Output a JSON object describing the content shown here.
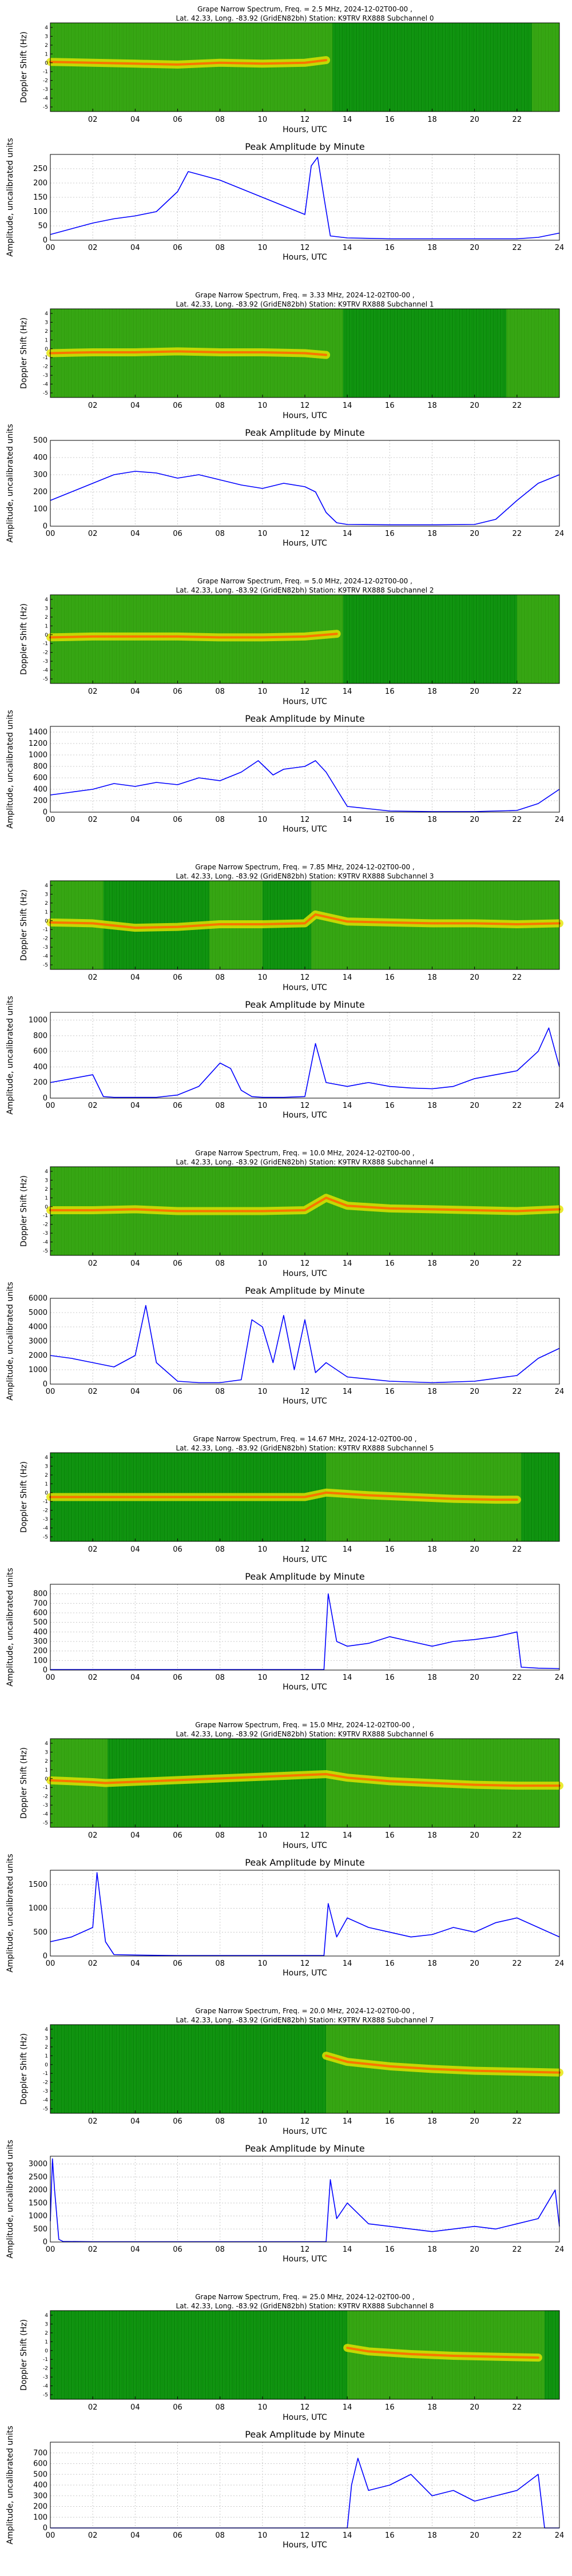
{
  "common": {
    "spec_title_tmpl": "Grape Narrow Spectrum, Freq. = {freq} MHz, 2024-12-02T00-00 ,",
    "spec_title_line2_tmpl": "Lat.  42.33, Long. -83.92 (GridEN82bh) Station: K9TRV RX888 Subchannel {ch}",
    "spec_ylabel": "Doppler Shift (Hz)",
    "spec_xticks": [
      "02",
      "04",
      "06",
      "08",
      "10",
      "12",
      "14",
      "16",
      "18",
      "20",
      "22"
    ],
    "spec_yticks": [
      "4",
      "3",
      "2",
      "1",
      "0",
      "-1",
      "-2",
      "-3",
      "-4",
      "-5"
    ],
    "peak_title": "Peak Amplitude by Minute",
    "peak_ylabel": "Amplitude, uncalibrated units",
    "xlabel": "Hours, UTC",
    "peak_xticks": [
      "00",
      "02",
      "04",
      "06",
      "08",
      "10",
      "12",
      "14",
      "16",
      "18",
      "20",
      "22",
      "24"
    ]
  },
  "chart_data": [
    {
      "type": "heatmap",
      "freq": "2.5",
      "channel": "0",
      "title": "Grape Narrow Spectrum, Freq. = 2.5 MHz, 2024-12-02T00-00 ,",
      "xlabel": "Hours, UTC",
      "ylabel": "Doppler Shift (Hz)",
      "xlim": [
        0,
        24
      ],
      "ylim": [
        -5,
        5
      ],
      "trace": [
        [
          0,
          0.6
        ],
        [
          2,
          0.5
        ],
        [
          4,
          0.4
        ],
        [
          6,
          0.3
        ],
        [
          8,
          0.5
        ],
        [
          10,
          0.4
        ],
        [
          12,
          0.5
        ],
        [
          13,
          0.8
        ]
      ],
      "active": [
        [
          0,
          13.3
        ],
        [
          22.7,
          24
        ]
      ]
    },
    {
      "type": "line",
      "title": "Peak Amplitude by Minute",
      "xlabel": "Hours, UTC",
      "ylabel": "Amplitude, uncalibrated units",
      "xlim": [
        0,
        24
      ],
      "ylim": [
        0,
        300
      ],
      "yticks": [
        0,
        50,
        100,
        150,
        200,
        250
      ],
      "x": [
        0,
        1,
        2,
        3,
        4,
        5,
        6,
        6.5,
        7,
        8,
        9,
        10,
        11,
        12,
        12.3,
        12.6,
        12.9,
        13.2,
        14,
        16,
        18,
        20,
        22,
        23,
        24
      ],
      "y": [
        20,
        40,
        60,
        75,
        85,
        100,
        170,
        240,
        230,
        210,
        180,
        150,
        120,
        90,
        260,
        290,
        150,
        15,
        8,
        5,
        5,
        5,
        5,
        10,
        25
      ]
    },
    {
      "type": "heatmap",
      "freq": "3.33",
      "channel": "1",
      "title": "Grape Narrow Spectrum, Freq. = 3.33 MHz, 2024-12-02T00-00 ,",
      "xlabel": "Hours, UTC",
      "ylabel": "Doppler Shift (Hz)",
      "xlim": [
        0,
        24
      ],
      "ylim": [
        -5,
        5
      ],
      "trace": [
        [
          0,
          0
        ],
        [
          2,
          0.1
        ],
        [
          4,
          0.1
        ],
        [
          6,
          0.2
        ],
        [
          8,
          0.1
        ],
        [
          10,
          0.1
        ],
        [
          12,
          0
        ],
        [
          13,
          -0.2
        ]
      ],
      "active": [
        [
          0,
          13.8
        ],
        [
          21.5,
          24
        ]
      ]
    },
    {
      "type": "line",
      "title": "Peak Amplitude by Minute",
      "xlabel": "Hours, UTC",
      "ylabel": "Amplitude, uncalibrated units",
      "xlim": [
        0,
        24
      ],
      "ylim": [
        0,
        500
      ],
      "yticks": [
        0,
        100,
        200,
        300,
        400,
        500
      ],
      "x": [
        0,
        1,
        2,
        3,
        4,
        5,
        6,
        7,
        8,
        9,
        10,
        11,
        12,
        12.5,
        13,
        13.5,
        14,
        16,
        18,
        20,
        21,
        22,
        23,
        24
      ],
      "y": [
        150,
        200,
        250,
        300,
        320,
        310,
        280,
        300,
        270,
        240,
        220,
        250,
        230,
        200,
        80,
        20,
        10,
        8,
        8,
        10,
        40,
        150,
        250,
        300
      ]
    },
    {
      "type": "heatmap",
      "freq": "5.0",
      "channel": "2",
      "title": "Grape Narrow Spectrum, Freq. = 5.0 MHz, 2024-12-02T00-00 ,",
      "xlabel": "Hours, UTC",
      "ylabel": "Doppler Shift (Hz)",
      "xlim": [
        0,
        24
      ],
      "ylim": [
        -5,
        5
      ],
      "trace": [
        [
          0,
          0.2
        ],
        [
          2,
          0.3
        ],
        [
          4,
          0.3
        ],
        [
          6,
          0.3
        ],
        [
          8,
          0.2
        ],
        [
          10,
          0.2
        ],
        [
          12,
          0.3
        ],
        [
          13.5,
          0.6
        ]
      ],
      "active": [
        [
          0,
          13.8
        ],
        [
          22,
          24
        ]
      ]
    },
    {
      "type": "line",
      "title": "Peak Amplitude by Minute",
      "xlabel": "Hours, UTC",
      "ylabel": "Amplitude, uncalibrated units",
      "xlim": [
        0,
        24
      ],
      "ylim": [
        0,
        1500
      ],
      "yticks": [
        0,
        200,
        400,
        600,
        800,
        1000,
        1200,
        1400
      ],
      "x": [
        0,
        1,
        2,
        3,
        4,
        5,
        6,
        7,
        8,
        9,
        9.8,
        10.5,
        11,
        12,
        12.5,
        13,
        13.5,
        14,
        16,
        18,
        20,
        22,
        23,
        24
      ],
      "y": [
        300,
        350,
        400,
        500,
        450,
        520,
        480,
        600,
        550,
        700,
        900,
        650,
        750,
        800,
        900,
        700,
        400,
        100,
        20,
        10,
        10,
        30,
        150,
        400
      ]
    },
    {
      "type": "heatmap",
      "freq": "7.85",
      "channel": "3",
      "title": "Grape Narrow Spectrum, Freq. = 7.85 MHz, 2024-12-02T00-00 ,",
      "xlabel": "Hours, UTC",
      "ylabel": "Doppler Shift (Hz)",
      "xlim": [
        0,
        24
      ],
      "ylim": [
        -5,
        5
      ],
      "trace": [
        [
          0,
          0.3
        ],
        [
          2,
          0.2
        ],
        [
          4,
          -0.3
        ],
        [
          6,
          -0.2
        ],
        [
          8,
          0.1
        ],
        [
          10,
          0.1
        ],
        [
          12,
          0.2
        ],
        [
          12.5,
          1.2
        ],
        [
          14,
          0.4
        ],
        [
          16,
          0.3
        ],
        [
          18,
          0.2
        ],
        [
          20,
          0.2
        ],
        [
          22,
          0.1
        ],
        [
          24,
          0.2
        ]
      ],
      "active": [
        [
          0,
          2.5
        ],
        [
          7.5,
          10
        ],
        [
          12.3,
          24
        ]
      ]
    },
    {
      "type": "line",
      "title": "Peak Amplitude by Minute",
      "xlabel": "Hours, UTC",
      "ylabel": "Amplitude, uncalibrated units",
      "xlim": [
        0,
        24
      ],
      "ylim": [
        0,
        1100
      ],
      "yticks": [
        0,
        200,
        400,
        600,
        800,
        1000
      ],
      "x": [
        0,
        1,
        2,
        2.5,
        3,
        4,
        5,
        6,
        7,
        8,
        8.5,
        9,
        9.5,
        10,
        11,
        12,
        12.5,
        13,
        14,
        15,
        16,
        17,
        18,
        19,
        20,
        21,
        22,
        23,
        23.5,
        24
      ],
      "y": [
        200,
        250,
        300,
        20,
        10,
        10,
        10,
        40,
        150,
        450,
        380,
        100,
        20,
        10,
        10,
        20,
        700,
        200,
        150,
        200,
        150,
        130,
        120,
        150,
        250,
        300,
        350,
        600,
        900,
        400
      ]
    },
    {
      "type": "heatmap",
      "freq": "10.0",
      "channel": "4",
      "title": "Grape Narrow Spectrum, Freq. = 10.0 MHz, 2024-12-02T00-00 ,",
      "xlabel": "Hours, UTC",
      "ylabel": "Doppler Shift (Hz)",
      "xlim": [
        0,
        24
      ],
      "ylim": [
        -5,
        5
      ],
      "trace": [
        [
          0,
          0.1
        ],
        [
          2,
          0.1
        ],
        [
          4,
          0.2
        ],
        [
          6,
          0
        ],
        [
          8,
          0
        ],
        [
          10,
          0
        ],
        [
          12,
          0.1
        ],
        [
          13,
          1.5
        ],
        [
          14,
          0.6
        ],
        [
          16,
          0.3
        ],
        [
          18,
          0.2
        ],
        [
          20,
          0.1
        ],
        [
          22,
          0
        ],
        [
          24,
          0.2
        ]
      ],
      "active": [
        [
          0,
          24
        ]
      ]
    },
    {
      "type": "line",
      "title": "Peak Amplitude by Minute",
      "xlabel": "Hours, UTC",
      "ylabel": "Amplitude, uncalibrated units",
      "xlim": [
        0,
        24
      ],
      "ylim": [
        0,
        6000
      ],
      "yticks": [
        0,
        1000,
        2000,
        3000,
        4000,
        5000,
        6000
      ],
      "x": [
        0,
        1,
        2,
        3,
        4,
        4.5,
        5,
        6,
        7,
        8,
        9,
        9.5,
        10,
        10.5,
        11,
        11.5,
        12,
        12.5,
        13,
        14,
        16,
        18,
        20,
        22,
        23,
        24
      ],
      "y": [
        2000,
        1800,
        1500,
        1200,
        2000,
        5500,
        1500,
        200,
        100,
        100,
        300,
        4500,
        4000,
        1500,
        4800,
        1000,
        4500,
        800,
        1500,
        500,
        200,
        100,
        200,
        600,
        1800,
        2500
      ]
    },
    {
      "type": "heatmap",
      "freq": "14.67",
      "channel": "5",
      "title": "Grape Narrow Spectrum, Freq. = 14.67 MHz, 2024-12-02T00-00 ,",
      "xlabel": "Hours, UTC",
      "ylabel": "Doppler Shift (Hz)",
      "xlim": [
        0,
        24
      ],
      "ylim": [
        -5,
        5
      ],
      "trace": [
        [
          0,
          0
        ],
        [
          2,
          0
        ],
        [
          4,
          0
        ],
        [
          6,
          0
        ],
        [
          8,
          0
        ],
        [
          10,
          0
        ],
        [
          12,
          0
        ],
        [
          13,
          0.5
        ],
        [
          15,
          0.2
        ],
        [
          17,
          0
        ],
        [
          19,
          -0.2
        ],
        [
          21,
          -0.3
        ],
        [
          22,
          -0.3
        ]
      ],
      "active": [
        [
          13,
          22.2
        ]
      ]
    },
    {
      "type": "line",
      "title": "Peak Amplitude by Minute",
      "xlabel": "Hours, UTC",
      "ylabel": "Amplitude, uncalibrated units",
      "xlim": [
        0,
        24
      ],
      "ylim": [
        0,
        900
      ],
      "yticks": [
        0,
        100,
        200,
        300,
        400,
        500,
        600,
        700,
        800
      ],
      "x": [
        0,
        2,
        4,
        6,
        8,
        10,
        12,
        12.9,
        13.1,
        13.5,
        14,
        15,
        16,
        17,
        18,
        19,
        20,
        21,
        22,
        22.2,
        23,
        24
      ],
      "y": [
        5,
        5,
        5,
        5,
        5,
        5,
        5,
        5,
        800,
        300,
        250,
        280,
        350,
        300,
        250,
        300,
        320,
        350,
        400,
        30,
        20,
        15
      ]
    },
    {
      "type": "heatmap",
      "freq": "15.0",
      "channel": "6",
      "title": "Grape Narrow Spectrum, Freq. = 15.0 MHz, 2024-12-02T00-00 ,",
      "xlabel": "Hours, UTC",
      "ylabel": "Doppler Shift (Hz)",
      "xlim": [
        0,
        24
      ],
      "ylim": [
        -5,
        5
      ],
      "trace": [
        [
          0,
          0.3
        ],
        [
          1,
          0.2
        ],
        [
          2,
          0.1
        ],
        [
          2.6,
          0
        ],
        [
          13,
          1
        ],
        [
          14,
          0.6
        ],
        [
          16,
          0.2
        ],
        [
          18,
          0
        ],
        [
          20,
          -0.2
        ],
        [
          22,
          -0.3
        ],
        [
          24,
          -0.3
        ]
      ],
      "active": [
        [
          0,
          2.7
        ],
        [
          13,
          24
        ]
      ]
    },
    {
      "type": "line",
      "title": "Peak Amplitude by Minute",
      "xlabel": "Hours, UTC",
      "ylabel": "Amplitude, uncalibrated units",
      "xlim": [
        0,
        24
      ],
      "ylim": [
        0,
        1800
      ],
      "yticks": [
        0,
        500,
        1000,
        1500
      ],
      "x": [
        0,
        1,
        1.5,
        2,
        2.2,
        2.6,
        3,
        4,
        6,
        8,
        10,
        12,
        12.9,
        13.1,
        13.5,
        14,
        15,
        16,
        17,
        18,
        19,
        20,
        21,
        22,
        23,
        24
      ],
      "y": [
        300,
        400,
        500,
        600,
        1750,
        300,
        30,
        20,
        10,
        10,
        10,
        10,
        10,
        1100,
        400,
        800,
        600,
        500,
        400,
        450,
        600,
        500,
        700,
        800,
        600,
        400
      ]
    },
    {
      "type": "heatmap",
      "freq": "20.0",
      "channel": "7",
      "title": "Grape Narrow Spectrum, Freq. = 20.0 MHz, 2024-12-02T00-00 ,",
      "xlabel": "Hours, UTC",
      "ylabel": "Doppler Shift (Hz)",
      "xlim": [
        0,
        24
      ],
      "ylim": [
        -5,
        5
      ],
      "trace": [
        [
          13,
          1.5
        ],
        [
          14,
          0.8
        ],
        [
          16,
          0.3
        ],
        [
          18,
          0
        ],
        [
          20,
          -0.2
        ],
        [
          22,
          -0.3
        ],
        [
          24,
          -0.4
        ]
      ],
      "active": [
        [
          13,
          24
        ]
      ]
    },
    {
      "type": "line",
      "title": "Peak Amplitude by Minute",
      "xlabel": "Hours, UTC",
      "ylabel": "Amplitude, uncalibrated units",
      "xlim": [
        0,
        24
      ],
      "ylim": [
        0,
        3300
      ],
      "yticks": [
        0,
        500,
        1000,
        1500,
        2000,
        2500,
        3000
      ],
      "x": [
        0,
        0.1,
        0.2,
        0.4,
        0.6,
        2,
        4,
        6,
        8,
        10,
        12,
        13,
        13.2,
        13.5,
        14,
        15,
        16,
        17,
        18,
        19,
        20,
        21,
        22,
        23,
        23.8,
        24
      ],
      "y": [
        800,
        3200,
        2000,
        100,
        20,
        10,
        10,
        10,
        10,
        10,
        10,
        10,
        2400,
        900,
        1500,
        700,
        600,
        500,
        400,
        500,
        600,
        500,
        700,
        900,
        2000,
        600
      ]
    },
    {
      "type": "heatmap",
      "freq": "25.0",
      "channel": "8",
      "title": "Grape Narrow Spectrum, Freq. = 25.0 MHz, 2024-12-02T00-00 ,",
      "xlabel": "Hours, UTC",
      "ylabel": "Doppler Shift (Hz)",
      "xlim": [
        0,
        24
      ],
      "ylim": [
        -5,
        5
      ],
      "trace": [
        [
          14,
          0.8
        ],
        [
          15,
          0.4
        ],
        [
          17,
          0.1
        ],
        [
          19,
          -0.1
        ],
        [
          21,
          -0.2
        ],
        [
          23,
          -0.3
        ]
      ],
      "active": [
        [
          14,
          23.3
        ]
      ]
    },
    {
      "type": "line",
      "title": "Peak Amplitude by Minute",
      "xlabel": "Hours, UTC",
      "ylabel": "Amplitude, uncalibrated units",
      "xlim": [
        0,
        24
      ],
      "ylim": [
        0,
        800
      ],
      "yticks": [
        0,
        100,
        200,
        300,
        400,
        500,
        600,
        700
      ],
      "x": [
        0,
        14,
        14.2,
        14.5,
        15,
        16,
        17,
        18,
        19,
        20,
        21,
        22,
        23,
        23.3,
        24
      ],
      "y": [
        0,
        0,
        400,
        650,
        350,
        400,
        500,
        300,
        350,
        250,
        300,
        350,
        500,
        0,
        0
      ]
    }
  ]
}
